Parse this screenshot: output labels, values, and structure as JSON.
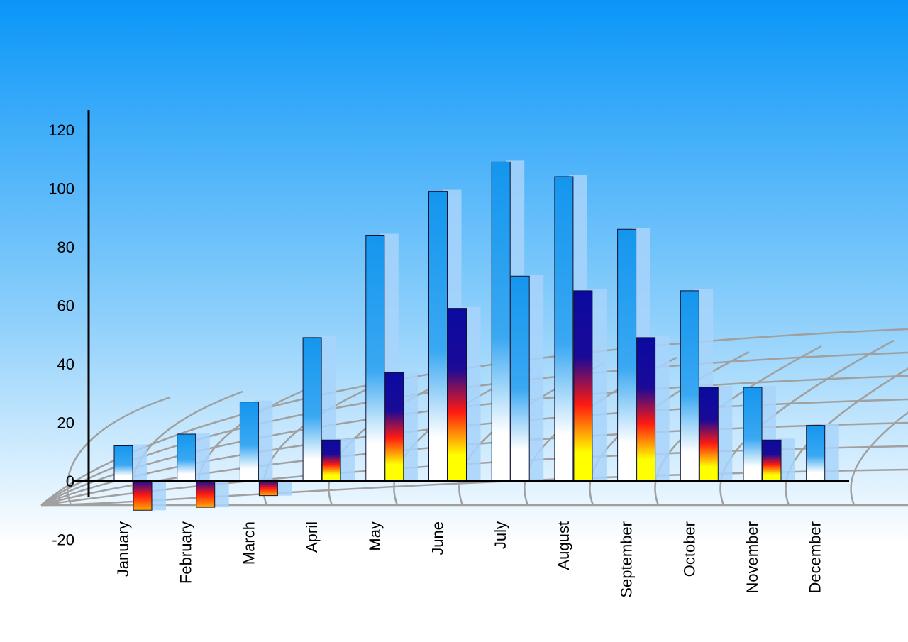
{
  "chart_data": {
    "type": "bar",
    "title": "",
    "xlabel": "",
    "ylabel": "",
    "ylim": [
      -20,
      120
    ],
    "yticks": [
      -20,
      0,
      20,
      40,
      60,
      80,
      100,
      120
    ],
    "grid": false,
    "categories": [
      "January",
      "February",
      "March",
      "April",
      "May",
      "June",
      "July",
      "August",
      "September",
      "October",
      "November",
      "December"
    ],
    "series": [
      {
        "values": [
          12,
          16,
          27,
          49,
          84,
          99,
          109,
          104,
          86,
          65,
          32,
          19
        ]
      },
      {
        "values": [
          -10,
          -9,
          -5,
          14,
          37,
          59,
          70,
          65,
          49,
          32,
          14,
          null
        ]
      }
    ],
    "colors": {
      "background_top": "#0a96f8",
      "background_bottom": "#ffffff",
      "series1": "#1496ee",
      "series2_top": "#0a0aa0",
      "series2_mid": "#ff1010",
      "series2_bottom": "#ffff00"
    }
  }
}
